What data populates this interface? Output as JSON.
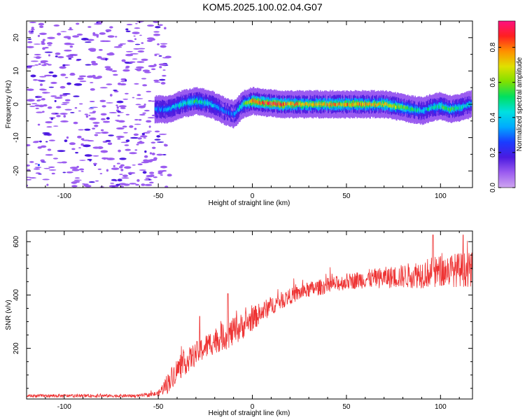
{
  "title": "KOM5.2025.100.02.04.G07",
  "colors": {
    "snr_line": "#ee3333",
    "axis": "#000000",
    "colormap": [
      "#cfa6f0",
      "#9b5cf0",
      "#4b1ae0",
      "#1a3cff",
      "#00aaff",
      "#00e0e0",
      "#00e060",
      "#80e000",
      "#e0e000",
      "#ff9000",
      "#ff2020",
      "#ff1080"
    ]
  },
  "chart_data": [
    {
      "type": "heatmap",
      "xlabel": "Height of straight line (km)",
      "ylabel": "Frequency (Hz)",
      "xlim": [
        -120,
        117
      ],
      "ylim": [
        -25,
        25
      ],
      "xticks": [
        -100,
        -50,
        0,
        50,
        100
      ],
      "yticks": [
        -20,
        -10,
        0,
        10,
        20
      ],
      "noise_region_x": [
        -120,
        -50
      ],
      "ridge": {
        "x": [
          -52,
          -45,
          -38,
          -30,
          -22,
          -15,
          -10,
          -5,
          0,
          5,
          15,
          30,
          50,
          70,
          80,
          90,
          95,
          100,
          105,
          110,
          116
        ],
        "y": [
          -1.5,
          -1.5,
          0,
          1,
          0,
          -2,
          -3,
          0,
          1,
          0.5,
          0,
          0,
          0,
          0,
          -1,
          -2,
          -1,
          -0.5,
          -1.5,
          -1,
          0
        ],
        "peak_amplitude": [
          0.3,
          0.35,
          0.45,
          0.5,
          0.4,
          0.3,
          0.3,
          0.5,
          0.8,
          0.85,
          0.8,
          0.7,
          0.75,
          0.7,
          0.6,
          0.4,
          0.45,
          0.5,
          0.55,
          0.45,
          0.4
        ]
      },
      "colorbar": {
        "label": "Normalized spectral amplitude",
        "range": [
          0,
          0.95
        ],
        "ticks": [
          "0.0",
          "0.2",
          "0.4",
          "0.6",
          "0.8"
        ],
        "tick_values": [
          0,
          0.2,
          0.4,
          0.6,
          0.8
        ]
      }
    },
    {
      "type": "line",
      "xlabel": "Height of straight line (km)",
      "ylabel": "SNR (v/v)",
      "xlim": [
        -120,
        117
      ],
      "ylim": [
        10,
        640
      ],
      "xticks": [
        -100,
        -50,
        0,
        50,
        100
      ],
      "yticks": [
        200,
        400,
        600
      ],
      "trend": {
        "x": [
          -120,
          -60,
          -50,
          -45,
          -40,
          -30,
          -20,
          -10,
          0,
          10,
          20,
          30,
          40,
          50,
          60,
          70,
          80,
          90,
          100,
          110,
          117
        ],
        "y": [
          22,
          22,
          30,
          70,
          120,
          180,
          230,
          260,
          310,
          360,
          395,
          420,
          435,
          450,
          460,
          465,
          470,
          480,
          490,
          495,
          495
        ],
        "noise": [
          6,
          6,
          10,
          40,
          45,
          45,
          50,
          55,
          45,
          35,
          30,
          30,
          30,
          30,
          35,
          40,
          45,
          55,
          60,
          65,
          65
        ]
      },
      "spikes": [
        {
          "x": -13,
          "y": 405
        },
        {
          "x": -28,
          "y": 320
        },
        {
          "x": 96,
          "y": 625
        },
        {
          "x": 112,
          "y": 625
        }
      ]
    }
  ]
}
